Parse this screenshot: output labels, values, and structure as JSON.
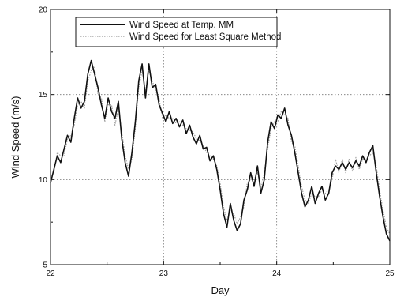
{
  "chart_data": {
    "type": "line",
    "title": "",
    "xlabel": "Day",
    "ylabel": "Wind Speed (m/s)",
    "xlim": [
      22,
      25
    ],
    "ylim": [
      5,
      20
    ],
    "x_ticks": [
      22,
      23,
      24,
      25
    ],
    "y_ticks": [
      5,
      10,
      15,
      20
    ],
    "x_tick_labels": [
      "22",
      "23",
      "24",
      "25"
    ],
    "y_tick_labels": [
      "5",
      "10",
      "15",
      "20"
    ],
    "grid": "dotted, at major ticks",
    "legend_position": "top-center",
    "series": [
      {
        "name": "Wind Speed at Temp. MM",
        "color": "#111111",
        "style": "solid",
        "x": [
          22.0,
          22.03,
          22.06,
          22.09,
          22.12,
          22.15,
          22.18,
          22.21,
          22.24,
          22.27,
          22.3,
          22.33,
          22.36,
          22.39,
          22.42,
          22.45,
          22.48,
          22.51,
          22.54,
          22.57,
          22.6,
          22.63,
          22.66,
          22.69,
          22.72,
          22.75,
          22.78,
          22.81,
          22.84,
          22.87,
          22.9,
          22.93,
          22.96,
          22.99,
          23.02,
          23.05,
          23.08,
          23.11,
          23.14,
          23.17,
          23.2,
          23.23,
          23.26,
          23.29,
          23.32,
          23.35,
          23.38,
          23.41,
          23.44,
          23.47,
          23.5,
          23.53,
          23.56,
          23.59,
          23.62,
          23.65,
          23.68,
          23.71,
          23.74,
          23.77,
          23.8,
          23.83,
          23.86,
          23.89,
          23.92,
          23.95,
          23.98,
          24.01,
          24.04,
          24.07,
          24.1,
          24.13,
          24.16,
          24.19,
          24.22,
          24.25,
          24.28,
          24.31,
          24.34,
          24.37,
          24.4,
          24.43,
          24.46,
          24.49,
          24.52,
          24.55,
          24.58,
          24.61,
          24.64,
          24.67,
          24.7,
          24.73,
          24.76,
          24.79,
          24.82,
          24.85,
          24.88,
          24.91,
          24.94,
          24.97,
          25.0
        ],
        "values": [
          9.8,
          10.6,
          11.4,
          11.0,
          11.8,
          12.6,
          12.2,
          13.6,
          14.8,
          14.2,
          14.6,
          16.2,
          17.0,
          16.2,
          15.4,
          14.4,
          13.6,
          14.8,
          14.0,
          13.6,
          14.6,
          12.4,
          11.0,
          10.2,
          11.6,
          13.4,
          15.8,
          16.8,
          14.8,
          16.8,
          15.4,
          15.6,
          14.4,
          13.9,
          13.4,
          14.0,
          13.3,
          13.6,
          13.1,
          13.5,
          12.7,
          13.2,
          12.5,
          12.1,
          12.6,
          11.8,
          11.9,
          11.1,
          11.4,
          10.6,
          9.4,
          8.0,
          7.2,
          8.6,
          7.6,
          7.0,
          7.4,
          8.8,
          9.4,
          10.4,
          9.6,
          10.8,
          9.2,
          10.0,
          12.2,
          13.4,
          13.0,
          13.8,
          13.6,
          14.2,
          13.2,
          12.6,
          11.6,
          10.4,
          9.2,
          8.4,
          8.8,
          9.6,
          8.6,
          9.2,
          9.6,
          8.8,
          9.2,
          10.4,
          10.8,
          10.6,
          11.0,
          10.6,
          11.0,
          10.7,
          11.1,
          10.8,
          11.4,
          11.0,
          11.6,
          12.0,
          10.4,
          9.0,
          7.8,
          6.8,
          6.4
        ]
      },
      {
        "name": "Wind Speed for Least Square Method",
        "color": "#9a9a9a",
        "style": "dotted",
        "x": [
          22.0,
          22.03,
          22.06,
          22.09,
          22.12,
          22.15,
          22.18,
          22.21,
          22.24,
          22.27,
          22.3,
          22.33,
          22.36,
          22.39,
          22.42,
          22.45,
          22.48,
          22.51,
          22.54,
          22.57,
          22.6,
          22.63,
          22.66,
          22.69,
          22.72,
          22.75,
          22.78,
          22.81,
          22.84,
          22.87,
          22.9,
          22.93,
          22.96,
          22.99,
          23.02,
          23.05,
          23.08,
          23.11,
          23.14,
          23.17,
          23.2,
          23.23,
          23.26,
          23.29,
          23.32,
          23.35,
          23.38,
          23.41,
          23.44,
          23.47,
          23.5,
          23.53,
          23.56,
          23.59,
          23.62,
          23.65,
          23.68,
          23.71,
          23.74,
          23.77,
          23.8,
          23.83,
          23.86,
          23.89,
          23.92,
          23.95,
          23.98,
          24.01,
          24.04,
          24.07,
          24.1,
          24.13,
          24.16,
          24.19,
          24.22,
          24.25,
          24.28,
          24.31,
          24.34,
          24.37,
          24.4,
          24.43,
          24.46,
          24.49,
          24.52,
          24.55,
          24.58,
          24.61,
          24.64,
          24.67,
          24.7,
          24.73,
          24.76,
          24.79,
          24.82,
          24.85,
          24.88,
          24.91,
          24.94,
          24.97,
          25.0
        ],
        "values": [
          10.2,
          10.4,
          11.6,
          11.4,
          11.4,
          12.4,
          12.6,
          13.2,
          14.4,
          14.6,
          14.2,
          15.8,
          16.4,
          16.6,
          15.0,
          14.8,
          13.4,
          14.4,
          14.4,
          13.2,
          14.2,
          12.8,
          11.4,
          10.6,
          11.2,
          13.0,
          15.4,
          16.4,
          15.2,
          16.4,
          15.8,
          15.2,
          14.8,
          13.6,
          13.8,
          13.6,
          13.6,
          13.3,
          13.4,
          13.2,
          13.0,
          12.9,
          12.8,
          12.4,
          12.3,
          12.0,
          11.6,
          11.4,
          11.2,
          10.8,
          9.8,
          8.4,
          7.6,
          8.2,
          8.0,
          7.4,
          7.8,
          8.4,
          9.8,
          10.0,
          10.0,
          10.4,
          9.6,
          10.4,
          11.8,
          13.0,
          13.4,
          13.4,
          14.0,
          13.8,
          13.6,
          12.2,
          12.0,
          10.8,
          9.6,
          8.8,
          8.6,
          9.2,
          9.0,
          9.0,
          9.4,
          9.2,
          9.4,
          10.0,
          11.2,
          10.4,
          11.2,
          10.4,
          11.2,
          10.5,
          11.3,
          10.6,
          11.2,
          11.2,
          11.4,
          11.6,
          10.8,
          9.4,
          8.2,
          7.2,
          6.8
        ]
      }
    ]
  }
}
